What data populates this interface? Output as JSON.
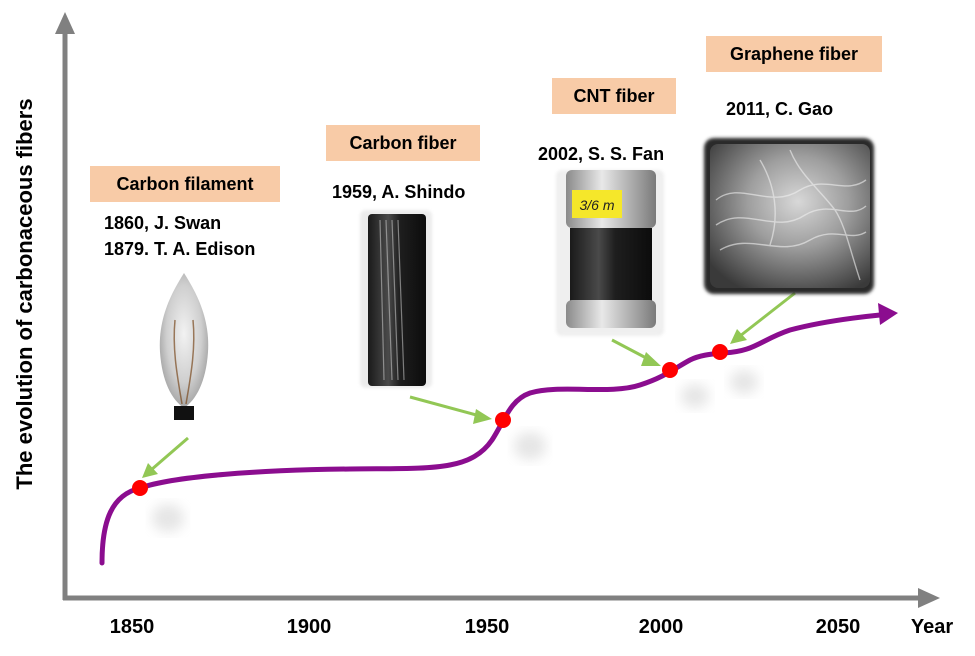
{
  "axes": {
    "y_label": "The evolution of carbonaceous fibers",
    "x_label": "Year",
    "x_ticks": [
      "1850",
      "1900",
      "1950",
      "2000",
      "2050"
    ]
  },
  "milestones": [
    {
      "tag": "Carbon filament",
      "lines": [
        "1860, J. Swan",
        "1879. T. A. Edison"
      ],
      "image": "light-bulb-icon"
    },
    {
      "tag": "Carbon fiber",
      "lines": [
        "1959, A. Shindo"
      ],
      "image": "carbon-fiber-spool-icon"
    },
    {
      "tag": "CNT fiber",
      "lines": [
        "2002, S. S. Fan"
      ],
      "image": "cnt-fiber-spool-icon",
      "spool_label": "3/6 m"
    },
    {
      "tag": "Graphene fiber",
      "lines": [
        "2011, C. Gao"
      ],
      "image": "graphene-fiber-sem-icon"
    }
  ],
  "colors": {
    "curve": "#8b0d8f",
    "marker": "#ff0000",
    "arrow": "#92c755",
    "tag_fill": "#f8cba7",
    "axis": "#808080"
  }
}
